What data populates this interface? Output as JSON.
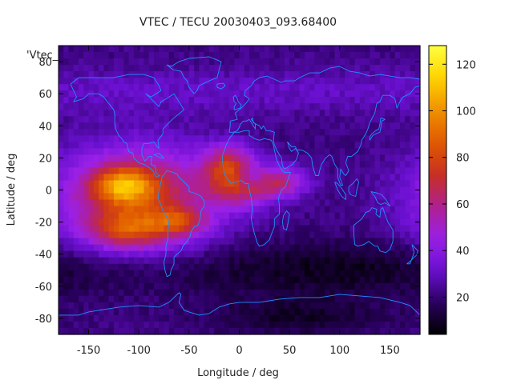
{
  "chart_data": {
    "type": "heatmap",
    "title": "VTEC / TECU 20030403_093.68400",
    "xlabel": "Longitude / deg",
    "ylabel": "Latitude / deg",
    "key_label": "'Vtec_",
    "xlim": [
      -180,
      180
    ],
    "ylim": [
      -90,
      90
    ],
    "x_ticks": [
      -150,
      -100,
      -50,
      0,
      50,
      100,
      150
    ],
    "y_ticks": [
      -80,
      -60,
      -40,
      -20,
      0,
      20,
      40,
      60,
      80
    ],
    "colorbar": {
      "range": [
        4,
        128
      ],
      "ticks": [
        20,
        40,
        60,
        80,
        100,
        120
      ],
      "palette": [
        "#000000",
        "#2a0060",
        "#6a10d0",
        "#9a20e8",
        "#b02090",
        "#c83020",
        "#e05a00",
        "#f09000",
        "#ffd400",
        "#ffff40"
      ]
    },
    "coastline_color": "#1e90ff",
    "tec_features": {
      "background": 22,
      "north_band": {
        "lat": 62,
        "value": 30
      },
      "south_band": {
        "lat": -50,
        "value": 8
      },
      "crest_north": {
        "lon": -115,
        "lat": 3,
        "value": 118
      },
      "crest_south": {
        "lon": -110,
        "lat": -25,
        "value": 108
      },
      "east_extension": {
        "lon": -10,
        "lat": 15,
        "value": 95
      },
      "africa_tail": {
        "lon": 40,
        "lat": 5,
        "value": 60
      }
    }
  }
}
